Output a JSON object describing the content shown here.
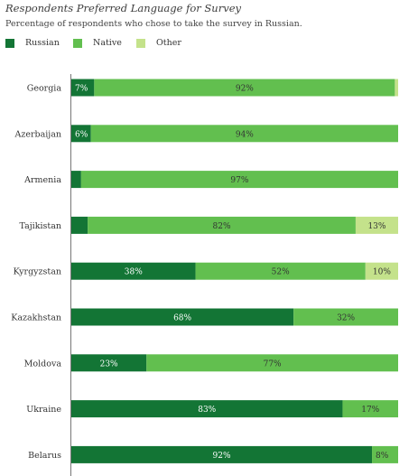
{
  "title": "Respondents Preferred Language for Survey",
  "subtitle": "Percentage of respondents who chose to take the survey in Russian.",
  "legend": {
    "russian": "Russian",
    "native": "Native",
    "other": "Other"
  },
  "colors": {
    "russian": "#137535",
    "native": "#62bf4f",
    "other": "#c4e28b"
  },
  "chart_data": {
    "type": "bar",
    "orientation": "horizontal",
    "stacked": true,
    "xlim": [
      0,
      100
    ],
    "categories": [
      "Georgia",
      "Azerbaijan",
      "Armenia",
      "Tajikistan",
      "Kyrgyzstan",
      "Kazakhstan",
      "Moldova",
      "Ukraine",
      "Belarus"
    ],
    "series": [
      {
        "name": "Russian",
        "values": [
          7,
          6,
          3,
          5,
          38,
          68,
          23,
          83,
          92
        ],
        "labels": [
          "7%",
          "6%",
          "",
          "",
          "38%",
          "68%",
          "23%",
          "83%",
          "92%"
        ]
      },
      {
        "name": "Native",
        "values": [
          92,
          94,
          97,
          82,
          52,
          32,
          77,
          17,
          8
        ],
        "labels": [
          "92%",
          "94%",
          "97%",
          "82%",
          "52%",
          "32%",
          "77%",
          "17%",
          "8%"
        ]
      },
      {
        "name": "Other",
        "values": [
          1,
          0,
          0,
          13,
          10,
          0,
          0,
          0,
          0
        ],
        "labels": [
          "",
          "",
          "",
          "13%",
          "10%",
          "",
          "",
          "",
          ""
        ]
      }
    ],
    "legend_position": "top-left",
    "grid": false
  }
}
